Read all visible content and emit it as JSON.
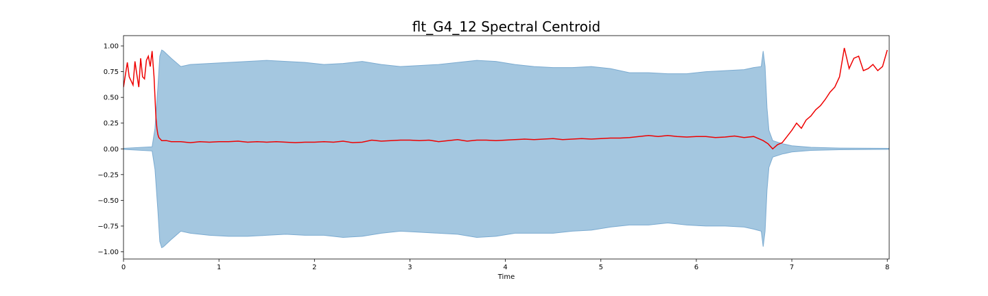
{
  "chart_data": {
    "type": "line",
    "title": "flt_G4_12 Spectral Centroid",
    "xlabel": "Time",
    "ylabel": "",
    "xlim": [
      0,
      8.02
    ],
    "ylim": [
      -1.07,
      1.1
    ],
    "x_ticks": [
      0,
      1,
      2,
      3,
      4,
      5,
      6,
      7,
      8
    ],
    "x_tick_labels": [
      "0",
      "1",
      "2",
      "3",
      "4",
      "5",
      "6",
      "7",
      "8"
    ],
    "y_ticks": [
      1.0,
      0.75,
      0.5,
      0.25,
      0.0,
      -0.25,
      -0.5,
      -0.75,
      -1.0
    ],
    "y_tick_labels": [
      "1.00",
      "0.75",
      "0.50",
      "0.25",
      "0.00",
      "−0.25",
      "−0.50",
      "−0.75",
      "−1.00"
    ],
    "grid": false,
    "colors": {
      "waveform_fill": "#a4c7e0",
      "waveform_edge": "#7aaad0",
      "centroid_line": "#ee0000"
    },
    "series": [
      {
        "kind": "waveform-envelope",
        "x": [
          0,
          0.3,
          0.33,
          0.36,
          0.38,
          0.4,
          0.42,
          0.5,
          0.6,
          0.7,
          0.9,
          1.1,
          1.3,
          1.5,
          1.7,
          1.9,
          2.1,
          2.3,
          2.5,
          2.7,
          2.9,
          3.1,
          3.3,
          3.5,
          3.7,
          3.9,
          4.1,
          4.3,
          4.5,
          4.7,
          4.9,
          5.1,
          5.3,
          5.5,
          5.7,
          5.9,
          6.1,
          6.3,
          6.5,
          6.6,
          6.68,
          6.7,
          6.72,
          6.74,
          6.76,
          6.8,
          6.9,
          7.0,
          7.2,
          7.5,
          8.02
        ],
        "upper": [
          0.005,
          0.02,
          0.2,
          0.6,
          0.9,
          0.96,
          0.95,
          0.88,
          0.8,
          0.82,
          0.83,
          0.84,
          0.85,
          0.86,
          0.85,
          0.84,
          0.82,
          0.83,
          0.85,
          0.82,
          0.8,
          0.81,
          0.82,
          0.84,
          0.86,
          0.85,
          0.82,
          0.8,
          0.79,
          0.79,
          0.8,
          0.78,
          0.74,
          0.74,
          0.73,
          0.73,
          0.75,
          0.76,
          0.77,
          0.79,
          0.8,
          0.95,
          0.8,
          0.4,
          0.18,
          0.08,
          0.05,
          0.03,
          0.015,
          0.008,
          0.005
        ],
        "lower": [
          -0.005,
          -0.02,
          -0.2,
          -0.6,
          -0.9,
          -0.96,
          -0.95,
          -0.88,
          -0.8,
          -0.82,
          -0.84,
          -0.85,
          -0.85,
          -0.84,
          -0.83,
          -0.84,
          -0.84,
          -0.86,
          -0.85,
          -0.82,
          -0.8,
          -0.81,
          -0.82,
          -0.83,
          -0.86,
          -0.85,
          -0.82,
          -0.82,
          -0.82,
          -0.8,
          -0.79,
          -0.76,
          -0.74,
          -0.74,
          -0.72,
          -0.74,
          -0.75,
          -0.75,
          -0.76,
          -0.78,
          -0.8,
          -0.95,
          -0.8,
          -0.4,
          -0.18,
          -0.08,
          -0.05,
          -0.03,
          -0.015,
          -0.008,
          -0.005
        ]
      },
      {
        "kind": "line",
        "x": [
          0,
          0.02,
          0.04,
          0.06,
          0.08,
          0.1,
          0.12,
          0.14,
          0.16,
          0.18,
          0.2,
          0.22,
          0.24,
          0.26,
          0.28,
          0.3,
          0.32,
          0.33,
          0.34,
          0.35,
          0.36,
          0.37,
          0.38,
          0.4,
          0.45,
          0.5,
          0.6,
          0.7,
          0.8,
          0.9,
          1.0,
          1.1,
          1.2,
          1.3,
          1.4,
          1.5,
          1.6,
          1.7,
          1.8,
          1.9,
          2.0,
          2.1,
          2.2,
          2.3,
          2.4,
          2.5,
          2.6,
          2.7,
          2.8,
          2.9,
          3.0,
          3.1,
          3.2,
          3.3,
          3.4,
          3.5,
          3.6,
          3.7,
          3.8,
          3.9,
          4.0,
          4.1,
          4.2,
          4.3,
          4.4,
          4.5,
          4.6,
          4.7,
          4.8,
          4.9,
          5.0,
          5.1,
          5.2,
          5.3,
          5.4,
          5.5,
          5.6,
          5.7,
          5.8,
          5.9,
          6.0,
          6.1,
          6.2,
          6.3,
          6.4,
          6.5,
          6.6,
          6.65,
          6.7,
          6.75,
          6.8,
          6.85,
          6.9,
          6.95,
          7.0,
          7.05,
          7.1,
          7.15,
          7.2,
          7.25,
          7.3,
          7.35,
          7.4,
          7.45,
          7.5,
          7.55,
          7.6,
          7.65,
          7.7,
          7.75,
          7.8,
          7.85,
          7.9,
          7.95,
          8.0
        ],
        "y": [
          0.6,
          0.72,
          0.84,
          0.7,
          0.66,
          0.62,
          0.85,
          0.72,
          0.6,
          0.88,
          0.7,
          0.68,
          0.86,
          0.9,
          0.8,
          0.95,
          0.7,
          0.5,
          0.3,
          0.2,
          0.14,
          0.11,
          0.1,
          0.08,
          0.08,
          0.07,
          0.07,
          0.06,
          0.07,
          0.065,
          0.07,
          0.07,
          0.075,
          0.065,
          0.07,
          0.065,
          0.07,
          0.065,
          0.06,
          0.065,
          0.065,
          0.07,
          0.065,
          0.075,
          0.06,
          0.065,
          0.085,
          0.075,
          0.08,
          0.085,
          0.085,
          0.08,
          0.085,
          0.07,
          0.08,
          0.09,
          0.075,
          0.085,
          0.085,
          0.08,
          0.085,
          0.09,
          0.095,
          0.09,
          0.095,
          0.1,
          0.09,
          0.095,
          0.1,
          0.095,
          0.1,
          0.105,
          0.105,
          0.11,
          0.12,
          0.13,
          0.12,
          0.13,
          0.12,
          0.115,
          0.12,
          0.12,
          0.11,
          0.115,
          0.125,
          0.11,
          0.12,
          0.1,
          0.08,
          0.05,
          0.0,
          0.04,
          0.06,
          0.12,
          0.18,
          0.25,
          0.2,
          0.28,
          0.32,
          0.38,
          0.42,
          0.48,
          0.55,
          0.6,
          0.7,
          0.98,
          0.78,
          0.88,
          0.9,
          0.76,
          0.78,
          0.82,
          0.76,
          0.8,
          0.96
        ]
      }
    ]
  }
}
